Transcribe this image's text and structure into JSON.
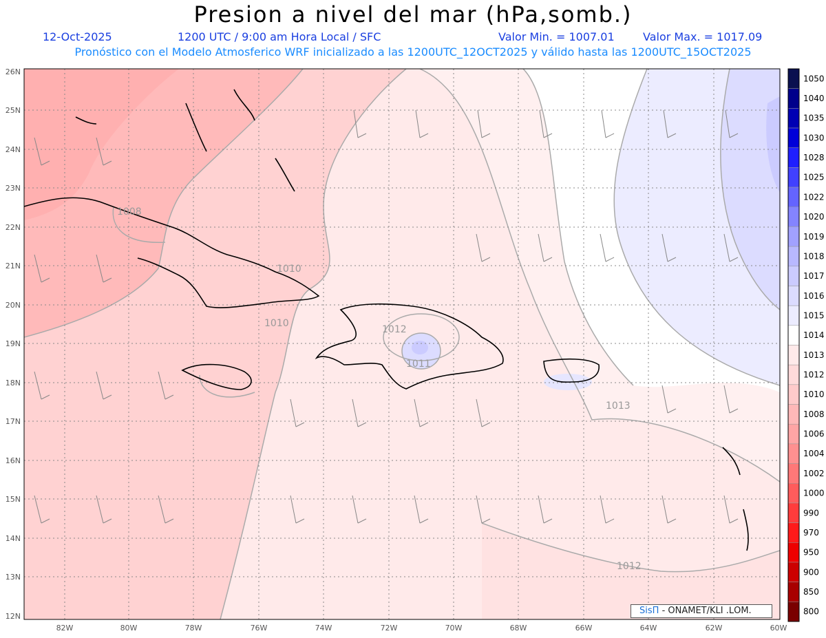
{
  "header": {
    "title": "Presion a nivel del mar (hPa,somb.)",
    "date": "12-Oct-2025",
    "time": "1200 UTC / 9:00 am Hora Local / SFC",
    "min": "Valor Min. = 1007.01",
    "max": "Valor Max. = 1017.09",
    "forecast": "Pronóstico con el Modelo Atmosferico WRF inicializado a las 1200UTC_12OCT2025 y válido hasta las  1200UTC_15OCT2025"
  },
  "axes": {
    "lon_labels": [
      "82W",
      "80W",
      "78W",
      "76W",
      "74W",
      "72W",
      "70W",
      "68W",
      "66W",
      "64W",
      "62W",
      "60W"
    ],
    "lat_labels": [
      "12N",
      "13N",
      "14N",
      "15N",
      "16N",
      "17N",
      "18N",
      "19N",
      "20N",
      "21N",
      "22N",
      "23N",
      "24N",
      "25N",
      "26N"
    ]
  },
  "contour_labels": [
    "1008",
    "1010",
    "1010",
    "1012",
    "1011",
    "1013",
    "1012"
  ],
  "legend": {
    "levels": [
      "1050",
      "1040",
      "1035",
      "1030",
      "1028",
      "1025",
      "1022",
      "1020",
      "1019",
      "1018",
      "1017",
      "1016",
      "1015",
      "1014",
      "1013",
      "1012",
      "1010",
      "1008",
      "1006",
      "1004",
      "1002",
      "1000",
      "990",
      "970",
      "950",
      "900",
      "850",
      "800"
    ],
    "colors": [
      "#0a1050",
      "#00008b",
      "#0000b3",
      "#0000d9",
      "#1f1fff",
      "#4141ff",
      "#6464ff",
      "#8484ff",
      "#a1a1ff",
      "#b8b8ff",
      "#cbcbff",
      "#dcdcff",
      "#ececff",
      "#ffffff",
      "#ffeaea",
      "#ffdada",
      "#ffcaca",
      "#ffb8b8",
      "#ffa5a5",
      "#ff9090",
      "#ff7878",
      "#ff5c5c",
      "#ff3c3c",
      "#ff1a1a",
      "#ee0000",
      "#cc0000",
      "#a80000",
      "#7a0000"
    ]
  },
  "credit": {
    "brand": "SisΠ",
    "text": "- ONAMET/ΚLI .ᒪOM."
  }
}
